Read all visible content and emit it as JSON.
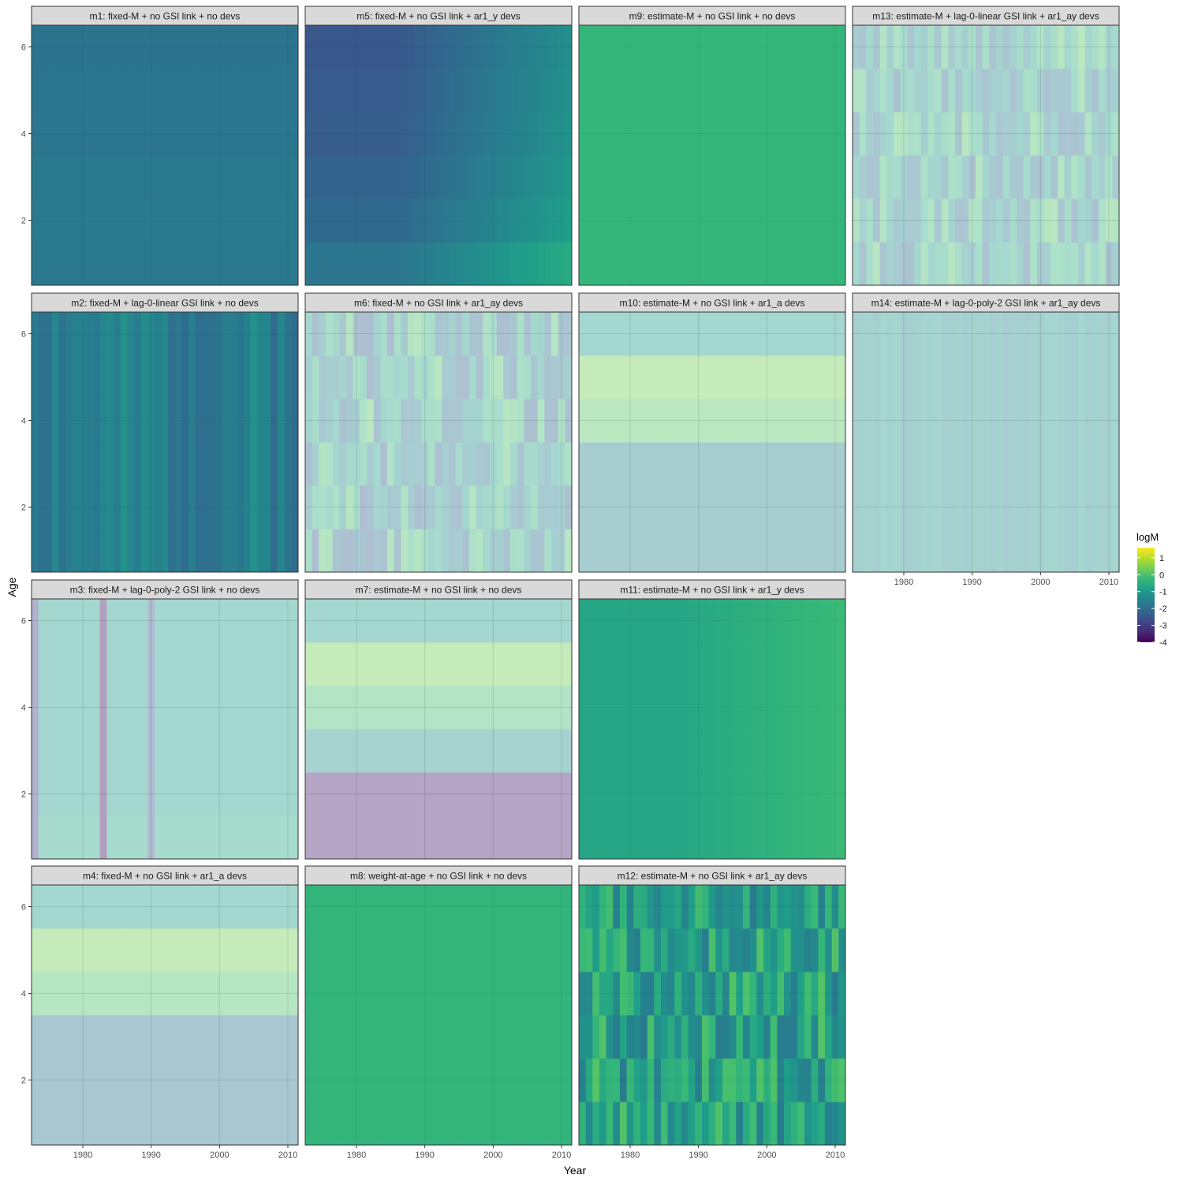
{
  "chart_data": {
    "type": "heatmap",
    "xlabel": "Year",
    "ylabel": "Age",
    "x_ticks": [
      1980,
      1990,
      2000,
      2010
    ],
    "y_ticks": [
      2,
      4,
      6
    ],
    "xlim": [
      1972.5,
      2011.5
    ],
    "ylim": [
      0.5,
      6.5
    ],
    "years": [
      1973,
      2011
    ],
    "ages": [
      1,
      2,
      3,
      4,
      5,
      6
    ],
    "legend": {
      "title": "logM",
      "position": "right",
      "ticks": [
        1,
        0,
        -1,
        -2,
        -3,
        -4
      ],
      "range": [
        -4.0,
        1.6
      ]
    },
    "colors": {
      "panel_background": "#ffffff",
      "strip_background": "#d9d9d9",
      "grid": "#ebebeb",
      "border": "#333333",
      "viridis": [
        "#440154",
        "#482878",
        "#3e4989",
        "#31688e",
        "#26828e",
        "#1f9e89",
        "#35b779",
        "#6ece58",
        "#b5de2b",
        "#fde725"
      ]
    },
    "panels": [
      {
        "label": "m1: fixed-M + no GSI link + no devs",
        "row": 0,
        "col": 0,
        "show_x_axis": false,
        "alpha": 1.0,
        "pattern": "age_gradient",
        "age_values": [
          -1.75,
          -1.7,
          -1.75,
          -1.8,
          -1.82,
          -1.85
        ]
      },
      {
        "label": "m5: fixed-M + no GSI link + ar1_y devs",
        "row": 0,
        "col": 1,
        "show_x_axis": false,
        "alpha": 1.0,
        "pattern": "year_ramp",
        "age_values": [
          -0.9,
          -1.2,
          -1.35,
          -1.45,
          -1.5,
          -1.55
        ],
        "year_ramp": [
          -0.9,
          0.3
        ]
      },
      {
        "label": "m9: estimate-M + no GSI link + no devs",
        "row": 0,
        "col": 2,
        "show_x_axis": false,
        "alpha": 1.0,
        "pattern": "constant",
        "value": -0.3
      },
      {
        "label": "m13: estimate-M + lag-0-linear GSI link + ar1_ay devs",
        "row": 0,
        "col": 3,
        "show_x_axis": false,
        "alpha": 0.4,
        "pattern": "random",
        "base": -1.0,
        "spread": 1.1,
        "seed": 13
      },
      {
        "label": "m2: fixed-M + lag-0-linear GSI link + no devs",
        "row": 1,
        "col": 0,
        "show_x_axis": false,
        "alpha": 1.0,
        "pattern": "year_random",
        "base": -1.6,
        "spread": 0.45,
        "seed": 2
      },
      {
        "label": "m6: fixed-M + no GSI link + ar1_ay devs",
        "row": 1,
        "col": 1,
        "show_x_axis": false,
        "alpha": 0.4,
        "pattern": "random",
        "base": -1.1,
        "spread": 1.2,
        "seed": 6
      },
      {
        "label": "m10: estimate-M + no GSI link + ar1_a devs",
        "row": 1,
        "col": 2,
        "show_x_axis": false,
        "alpha": 0.4,
        "pattern": "age_bands",
        "age_values": [
          -1.5,
          -1.5,
          -1.5,
          0.1,
          0.4,
          -0.9
        ]
      },
      {
        "label": "m14: estimate-M + lag-0-poly-2 GSI link + ar1_ay devs",
        "row": 1,
        "col": 3,
        "show_x_axis": true,
        "alpha": 0.4,
        "pattern": "year_random",
        "base": -1.2,
        "spread": 0.25,
        "seed": 14
      },
      {
        "label": "m3: fixed-M + lag-0-poly-2 GSI link + no devs",
        "row": 2,
        "col": 0,
        "show_x_axis": false,
        "alpha": 0.4,
        "pattern": "spikes",
        "base": -0.9,
        "spikes": [
          {
            "year": 1973,
            "value": -3.0
          },
          {
            "year": 1983,
            "value": -3.8
          },
          {
            "year": 1990,
            "value": -2.5
          }
        ]
      },
      {
        "label": "m7: estimate-M + no GSI link + no devs",
        "row": 2,
        "col": 1,
        "show_x_axis": false,
        "alpha": 0.4,
        "pattern": "age_bands",
        "age_values": [
          -3.5,
          -3.5,
          -1.2,
          -0.1,
          0.4,
          -0.9
        ]
      },
      {
        "label": "m11: estimate-M + no GSI link + ar1_y devs",
        "row": 2,
        "col": 2,
        "show_x_axis": false,
        "alpha": 1.0,
        "pattern": "year_ramp",
        "age_values": [
          0,
          0,
          0,
          0,
          0,
          0
        ],
        "year_ramp": [
          -0.7,
          -0.2
        ]
      },
      {
        "label": "m4: fixed-M + no GSI link + ar1_a devs",
        "row": 3,
        "col": 0,
        "show_x_axis": true,
        "alpha": 0.4,
        "pattern": "age_bands",
        "age_values": [
          -1.8,
          -1.8,
          -1.8,
          0.0,
          0.4,
          -0.9
        ]
      },
      {
        "label": "m8: weight-at-age + no GSI link + no devs",
        "row": 3,
        "col": 1,
        "show_x_axis": true,
        "alpha": 1.0,
        "pattern": "constant",
        "value": -0.35
      },
      {
        "label": "m12: estimate-M + no GSI link + ar1_ay devs",
        "row": 3,
        "col": 2,
        "show_x_axis": true,
        "alpha": 1.0,
        "pattern": "random",
        "base": -0.8,
        "spread": 0.9,
        "seed": 12
      }
    ]
  }
}
